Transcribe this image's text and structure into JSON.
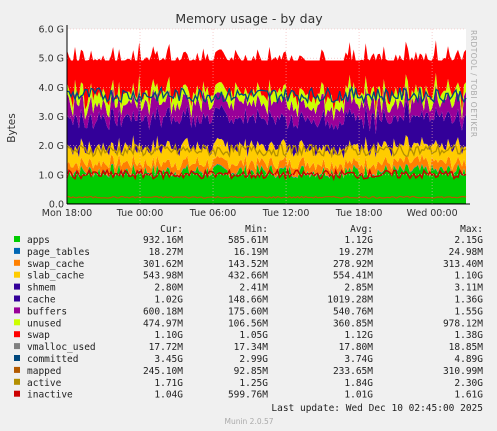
{
  "chart_data": {
    "type": "area",
    "title": "Memory usage - by day",
    "ylabel": "Bytes",
    "side_label": "RRDTOOL / TOBI OETIKER",
    "y_ticks": [
      "0.0",
      "1.0 G",
      "2.0 G",
      "3.0 G",
      "4.0 G",
      "5.0 G",
      "6.0 G"
    ],
    "ylim": [
      0,
      6.0
    ],
    "x_ticks": [
      "Mon 18:00",
      "Tue 00:00",
      "Tue 06:00",
      "Tue 12:00",
      "Tue 18:00",
      "Wed 00:00"
    ],
    "grid": true,
    "columns": [
      "Cur:",
      "Min:",
      "Avg:",
      "Max:"
    ],
    "series": [
      {
        "name": "apps",
        "color": "#00cc00",
        "cur": "932.16M",
        "min": "585.61M",
        "avg": "1.12G",
        "max": "2.15G"
      },
      {
        "name": "page_tables",
        "color": "#0066b3",
        "cur": "18.27M",
        "min": "16.19M",
        "avg": "19.27M",
        "max": "24.98M"
      },
      {
        "name": "swap_cache",
        "color": "#ff8000",
        "cur": "301.62M",
        "min": "143.52M",
        "avg": "278.92M",
        "max": "313.40M"
      },
      {
        "name": "slab_cache",
        "color": "#ffcc00",
        "cur": "543.98M",
        "min": "432.66M",
        "avg": "554.41M",
        "max": "1.10G"
      },
      {
        "name": "shmem",
        "color": "#330099",
        "cur": "2.80M",
        "min": "2.41M",
        "avg": "2.85M",
        "max": "3.11M"
      },
      {
        "name": "cache",
        "color": "#990099",
        "cur": "1.02G",
        "min": "148.66M",
        "avg": "1019.28M",
        "max": "1.36G"
      },
      {
        "name": "buffers",
        "color": "#ccff00",
        "cur": "600.18M",
        "min": "175.60M",
        "avg": "540.76M",
        "max": "1.55G"
      },
      {
        "name": "unused",
        "color": "#ff0000",
        "cur": "474.97M",
        "min": "106.56M",
        "avg": "360.85M",
        "max": "978.12M"
      },
      {
        "name": "swap",
        "color": "#808080",
        "cur": "1.10G",
        "min": "1.05G",
        "avg": "1.12G",
        "max": "1.38G"
      },
      {
        "name": "vmalloc_used",
        "color": "#008f00",
        "cur": "17.72M",
        "min": "17.34M",
        "avg": "17.80M",
        "max": "18.85M"
      },
      {
        "name": "committed",
        "color": "#00487d",
        "cur": "3.45G",
        "min": "2.99G",
        "avg": "3.74G",
        "max": "4.89G"
      },
      {
        "name": "mapped",
        "color": "#b35a00",
        "cur": "245.10M",
        "min": "92.85M",
        "avg": "233.65M",
        "max": "310.99M"
      },
      {
        "name": "active",
        "color": "#b38f00",
        "cur": "1.71G",
        "min": "1.25G",
        "avg": "1.84G",
        "max": "2.30G"
      },
      {
        "name": "inactive",
        "color": "#6b006b",
        "cur": "1.04G",
        "min": "599.76M",
        "avg": "1.01G",
        "max": "1.61G"
      }
    ],
    "legend_colors_override": {
      "shmem": "#330099",
      "cache": "#330099",
      "buffers": "#990099",
      "unused": "#ccff00",
      "swap": "#ff0000",
      "vmalloc_used": "#808080",
      "committed": "#00487d",
      "mapped": "#b35a00",
      "active": "#b38f00",
      "inactive": "#cc0000"
    },
    "last_update": "Last update:  Wed Dec 10 02:45:00 2025",
    "footer": "Munin 2.0.57"
  }
}
